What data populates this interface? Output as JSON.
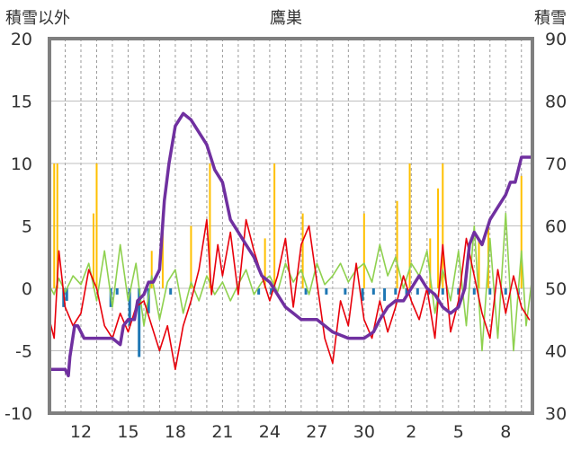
{
  "chart_data": {
    "type": "line",
    "title": "鷹巣",
    "ylabel_left": "積雪以外",
    "ylabel_right": "積雪",
    "y_left": {
      "min": -10,
      "max": 20,
      "ticks": [
        "20",
        "15",
        "10",
        "5",
        "0",
        "-5",
        "-10"
      ]
    },
    "y_right": {
      "min": 30,
      "max": 90,
      "ticks": [
        "90",
        "80",
        "70",
        "60",
        "50",
        "40",
        "30"
      ]
    },
    "x_ticks": [
      "12",
      "15",
      "18",
      "21",
      "24",
      "27",
      "30",
      "2",
      "5",
      "8"
    ],
    "x_tick_days": [
      2,
      5,
      8,
      11,
      14,
      17,
      20,
      23,
      26,
      29
    ],
    "days": 30.7,
    "grid": "dashed vertical per day, solid horizontal",
    "legend": "none",
    "colors": {
      "temperature": "#e8000b",
      "precip": "#ffc000",
      "wind": "#8fd14f",
      "sunshine": "#1f77b4",
      "snow_depth": "#7030a0"
    },
    "series": [
      {
        "key": "snow_depth",
        "axis": "right",
        "points": [
          [
            0,
            37
          ],
          [
            1,
            37
          ],
          [
            1.2,
            36
          ],
          [
            1.3,
            39
          ],
          [
            1.6,
            44
          ],
          [
            1.8,
            44
          ],
          [
            2.2,
            42
          ],
          [
            3,
            42
          ],
          [
            4,
            42
          ],
          [
            4.5,
            41
          ],
          [
            4.7,
            44
          ],
          [
            5,
            45
          ],
          [
            5.4,
            45
          ],
          [
            5.6,
            48
          ],
          [
            6,
            49
          ],
          [
            6.3,
            51
          ],
          [
            6.6,
            51
          ],
          [
            7,
            53
          ],
          [
            7.3,
            64
          ],
          [
            7.6,
            70
          ],
          [
            8,
            76
          ],
          [
            8.5,
            78
          ],
          [
            9,
            77
          ],
          [
            9.5,
            75
          ],
          [
            10,
            73
          ],
          [
            10.5,
            69
          ],
          [
            11,
            67
          ],
          [
            11.5,
            61
          ],
          [
            12,
            59
          ],
          [
            12.5,
            57
          ],
          [
            13,
            55
          ],
          [
            13.5,
            52
          ],
          [
            14,
            51
          ],
          [
            14.5,
            49
          ],
          [
            15,
            47
          ],
          [
            15.5,
            46
          ],
          [
            16,
            45
          ],
          [
            17,
            45
          ],
          [
            18,
            43
          ],
          [
            19,
            42
          ],
          [
            20,
            42
          ],
          [
            20.6,
            43
          ],
          [
            21,
            45
          ],
          [
            21.5,
            47
          ],
          [
            22,
            48
          ],
          [
            22.5,
            48
          ],
          [
            23,
            50
          ],
          [
            23.5,
            52
          ],
          [
            24,
            50
          ],
          [
            24.5,
            49
          ],
          [
            25,
            47
          ],
          [
            25.5,
            46
          ],
          [
            26,
            47
          ],
          [
            26.4,
            50
          ],
          [
            26.7,
            57
          ],
          [
            27,
            59
          ],
          [
            27.5,
            57
          ],
          [
            28,
            61
          ],
          [
            28.5,
            63
          ],
          [
            29,
            65
          ],
          [
            29.3,
            67
          ],
          [
            29.6,
            67
          ],
          [
            30,
            71
          ],
          [
            30.3,
            71
          ],
          [
            30.7,
            71
          ]
        ]
      },
      {
        "key": "temperature",
        "axis": "left",
        "points": [
          [
            0,
            -2.5
          ],
          [
            0.3,
            -4
          ],
          [
            0.6,
            3
          ],
          [
            1,
            -1.5
          ],
          [
            1.5,
            -3
          ],
          [
            2,
            -2
          ],
          [
            2.5,
            1.5
          ],
          [
            3,
            0
          ],
          [
            3.5,
            -3
          ],
          [
            4,
            -4
          ],
          [
            4.5,
            -2
          ],
          [
            5,
            -3.5
          ],
          [
            5.5,
            -1.5
          ],
          [
            6,
            -1
          ],
          [
            6.5,
            -3
          ],
          [
            7,
            -5
          ],
          [
            7.5,
            -3
          ],
          [
            8,
            -6.5
          ],
          [
            8.5,
            -3
          ],
          [
            9,
            -1
          ],
          [
            9.5,
            1.5
          ],
          [
            10,
            5.5
          ],
          [
            10.3,
            -0.5
          ],
          [
            10.7,
            3.5
          ],
          [
            11,
            1
          ],
          [
            11.5,
            4.5
          ],
          [
            12,
            -0.5
          ],
          [
            12.5,
            5.5
          ],
          [
            13,
            3
          ],
          [
            13.5,
            1
          ],
          [
            14,
            -1
          ],
          [
            14.5,
            1
          ],
          [
            15,
            4
          ],
          [
            15.5,
            -1.5
          ],
          [
            16,
            3.5
          ],
          [
            16.5,
            5
          ],
          [
            17,
            0.5
          ],
          [
            17.5,
            -4
          ],
          [
            18,
            -6
          ],
          [
            18.5,
            -1
          ],
          [
            19,
            -3
          ],
          [
            19.5,
            2
          ],
          [
            20,
            -2.5
          ],
          [
            20.5,
            -4
          ],
          [
            21,
            -1
          ],
          [
            21.5,
            -3.5
          ],
          [
            22,
            -1.5
          ],
          [
            22.5,
            1
          ],
          [
            23,
            -1
          ],
          [
            23.5,
            -2.5
          ],
          [
            24,
            0
          ],
          [
            24.5,
            -4
          ],
          [
            25,
            3.5
          ],
          [
            25.5,
            -3.5
          ],
          [
            26,
            -1
          ],
          [
            26.5,
            4
          ],
          [
            27,
            1
          ],
          [
            27.5,
            -2
          ],
          [
            28,
            -4
          ],
          [
            28.5,
            1.5
          ],
          [
            29,
            -2
          ],
          [
            29.5,
            1
          ],
          [
            30,
            -1.5
          ],
          [
            30.5,
            -2.5
          ]
        ]
      },
      {
        "key": "wind",
        "axis": "left",
        "points": [
          [
            0,
            0.2
          ],
          [
            0.3,
            -0.5
          ],
          [
            0.6,
            0.8
          ],
          [
            1,
            -0.3
          ],
          [
            1.5,
            1
          ],
          [
            2,
            0.3
          ],
          [
            2.5,
            2
          ],
          [
            3,
            -1
          ],
          [
            3.5,
            3
          ],
          [
            4,
            -1.5
          ],
          [
            4.5,
            3.5
          ],
          [
            5,
            -1
          ],
          [
            5.5,
            2
          ],
          [
            6,
            -3
          ],
          [
            6.5,
            1
          ],
          [
            7,
            -2.5
          ],
          [
            7.5,
            0.5
          ],
          [
            8,
            1.5
          ],
          [
            8.5,
            -2
          ],
          [
            9,
            0.5
          ],
          [
            9.5,
            -1
          ],
          [
            10,
            1
          ],
          [
            10.5,
            -0.5
          ],
          [
            11,
            0.5
          ],
          [
            11.5,
            -1
          ],
          [
            12,
            0.3
          ],
          [
            12.5,
            1.5
          ],
          [
            13,
            -0.5
          ],
          [
            13.5,
            0.5
          ],
          [
            14,
            1
          ],
          [
            14.5,
            -0.3
          ],
          [
            15,
            2
          ],
          [
            15.5,
            0.5
          ],
          [
            16,
            1.5
          ],
          [
            16.5,
            -0.5
          ],
          [
            17,
            2
          ],
          [
            17.5,
            0.3
          ],
          [
            18,
            1
          ],
          [
            18.5,
            2
          ],
          [
            19,
            0.5
          ],
          [
            19.5,
            1.5
          ],
          [
            20,
            2
          ],
          [
            20.5,
            0.5
          ],
          [
            21,
            3.5
          ],
          [
            21.5,
            1
          ],
          [
            22,
            2.5
          ],
          [
            22.5,
            0
          ],
          [
            23,
            2
          ],
          [
            23.5,
            1
          ],
          [
            24,
            3
          ],
          [
            24.5,
            -2
          ],
          [
            25,
            1.5
          ],
          [
            25.5,
            -1
          ],
          [
            26,
            3
          ],
          [
            26.5,
            -3
          ],
          [
            27,
            5
          ],
          [
            27.5,
            -5
          ],
          [
            28,
            4
          ],
          [
            28.5,
            -4
          ],
          [
            29,
            6
          ],
          [
            29.5,
            -5
          ],
          [
            30,
            3
          ],
          [
            30.3,
            -3
          ],
          [
            30.7,
            1
          ]
        ]
      },
      {
        "key": "precip",
        "axis": "left",
        "kind": "spikes",
        "points": [
          [
            0.3,
            10
          ],
          [
            0.5,
            10
          ],
          [
            2.8,
            6
          ],
          [
            3.0,
            10
          ],
          [
            6.5,
            3
          ],
          [
            7.2,
            6
          ],
          [
            9.0,
            5
          ],
          [
            10.2,
            10
          ],
          [
            13.7,
            4
          ],
          [
            14.3,
            10
          ],
          [
            16.1,
            6
          ],
          [
            20.0,
            6
          ],
          [
            22.1,
            7
          ],
          [
            22.9,
            10
          ],
          [
            24.2,
            4
          ],
          [
            24.7,
            8
          ],
          [
            25.0,
            10
          ],
          [
            27.3,
            4
          ],
          [
            27.9,
            5
          ],
          [
            30.0,
            9
          ]
        ]
      },
      {
        "key": "sunshine",
        "axis": "left",
        "kind": "bars",
        "points": [
          [
            0.9,
            -1.5
          ],
          [
            1.1,
            -1
          ],
          [
            3.9,
            -1.5
          ],
          [
            4.3,
            -0.5
          ],
          [
            5.1,
            -3
          ],
          [
            5.7,
            -5.5
          ],
          [
            6.3,
            -2
          ],
          [
            7.7,
            -0.5
          ],
          [
            13.3,
            -0.5
          ],
          [
            14.1,
            -0.5
          ],
          [
            16.3,
            -0.5
          ],
          [
            17.6,
            -0.5
          ],
          [
            18.8,
            -0.5
          ],
          [
            19.9,
            -1
          ],
          [
            20.6,
            -0.5
          ],
          [
            21.3,
            -1
          ],
          [
            22.0,
            -0.5
          ],
          [
            22.7,
            -0.5
          ],
          [
            23.4,
            -0.5
          ],
          [
            24.1,
            -0.5
          ],
          [
            25.0,
            -0.5
          ],
          [
            26.0,
            -0.5
          ],
          [
            27.0,
            -0.5
          ],
          [
            28.0,
            -0.5
          ],
          [
            29.0,
            -0.5
          ],
          [
            29.8,
            -0.5
          ]
        ]
      }
    ]
  }
}
